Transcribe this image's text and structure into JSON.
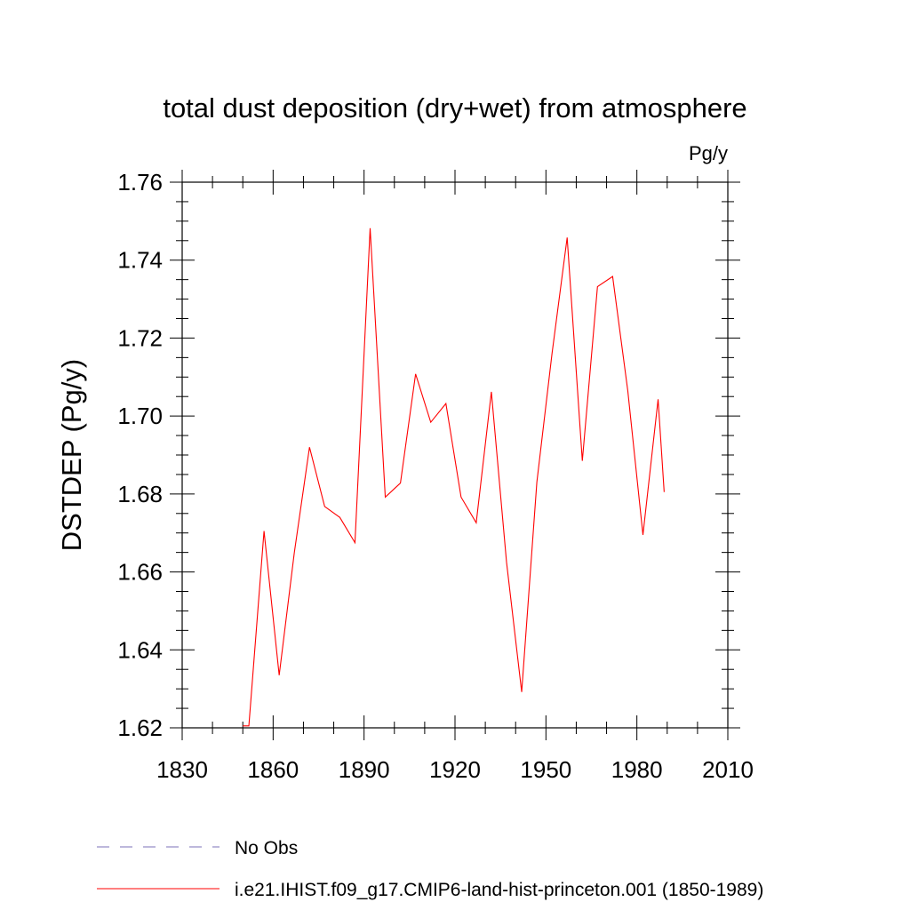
{
  "chart_data": {
    "type": "line",
    "title": "total dust deposition (dry+wet) from atmosphere",
    "units_label": "Pg/y",
    "ylabel": "DSTDEP  (Pg/y)",
    "xlabel": "",
    "xlim": [
      1830,
      2010
    ],
    "ylim": [
      1.62,
      1.76
    ],
    "x_ticks": [
      1830,
      1860,
      1890,
      1920,
      1950,
      1980,
      2010
    ],
    "x_tick_labels": [
      "1830",
      "1860",
      "1890",
      "1920",
      "1950",
      "1980",
      "2010"
    ],
    "y_ticks": [
      1.62,
      1.64,
      1.66,
      1.68,
      1.7,
      1.72,
      1.74,
      1.76
    ],
    "y_tick_labels": [
      "1.62",
      "1.64",
      "1.66",
      "1.68",
      "1.70",
      "1.72",
      "1.74",
      "1.76"
    ],
    "grid": false,
    "legend_position": "bottom-left",
    "series": [
      {
        "name": "No Obs",
        "color": "#7b72b8",
        "dashed": true,
        "x": [],
        "y": []
      },
      {
        "name": "i.e21.IHIST.f09_g17.CMIP6-land-hist-princeton.001 (1850-1989)",
        "color": "#ff0000",
        "dashed": false,
        "x": [
          1850,
          1852,
          1857,
          1862,
          1867,
          1872,
          1877,
          1882,
          1887,
          1892,
          1897,
          1902,
          1907,
          1912,
          1917,
          1922,
          1927,
          1932,
          1937,
          1942,
          1947,
          1952,
          1957,
          1962,
          1967,
          1972,
          1977,
          1982,
          1987,
          1989
        ],
        "y": [
          1.6205,
          1.6205,
          1.6705,
          1.6335,
          1.665,
          1.692,
          1.6768,
          1.674,
          1.6675,
          1.7482,
          1.6792,
          1.6828,
          1.7108,
          1.6984,
          1.7032,
          1.6792,
          1.6726,
          1.7062,
          1.6625,
          1.6292,
          1.683,
          1.716,
          1.7458,
          1.6885,
          1.7332,
          1.7358,
          1.7065,
          1.6695,
          1.7043,
          1.6805
        ]
      }
    ]
  }
}
